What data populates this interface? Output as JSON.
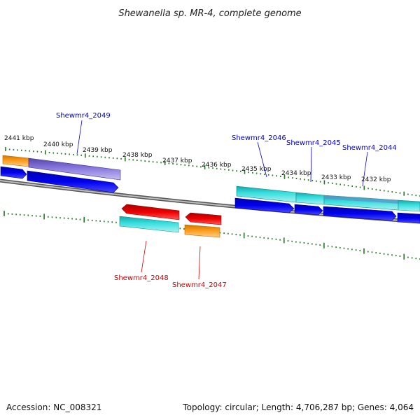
{
  "title": "Shewanella sp. MR-4, complete genome",
  "footer": {
    "accession": "Accession: NC_008321",
    "summary": "Topology: circular; Length: 4,706,287 bp; Genes: 4,064"
  },
  "colors": {
    "forward_label": "#0000cc",
    "reverse_label": "#cc0000",
    "cds_forward": "#0000ee",
    "cds_reverse": "#ee0000",
    "gene_feature": "#22cccc",
    "gene_feature_alt": "#7766cc",
    "gene_orange": "#ff9900",
    "backbone": "#808080",
    "tick": "#227722"
  },
  "kbp_ticks": [
    {
      "label": "2441 kbp"
    },
    {
      "label": "2440 kbp"
    },
    {
      "label": "2439 kbp"
    },
    {
      "label": "2438 kbp"
    },
    {
      "label": "2437 kbp"
    },
    {
      "label": "2436 kbp"
    },
    {
      "label": "2435 kbp"
    },
    {
      "label": "2434 kbp"
    },
    {
      "label": "2433 kbp"
    },
    {
      "label": "2432 kbp"
    }
  ],
  "gene_labels": [
    {
      "text": "Shewmr4_2049",
      "strand": "forward"
    },
    {
      "text": "Shewmr4_2046",
      "strand": "forward"
    },
    {
      "text": "Shewmr4_2045",
      "strand": "forward"
    },
    {
      "text": "Shewmr4_2044",
      "strand": "forward"
    },
    {
      "text": "Shewmr4_2048",
      "strand": "reverse"
    },
    {
      "text": "Shewmr4_2047",
      "strand": "reverse"
    }
  ]
}
